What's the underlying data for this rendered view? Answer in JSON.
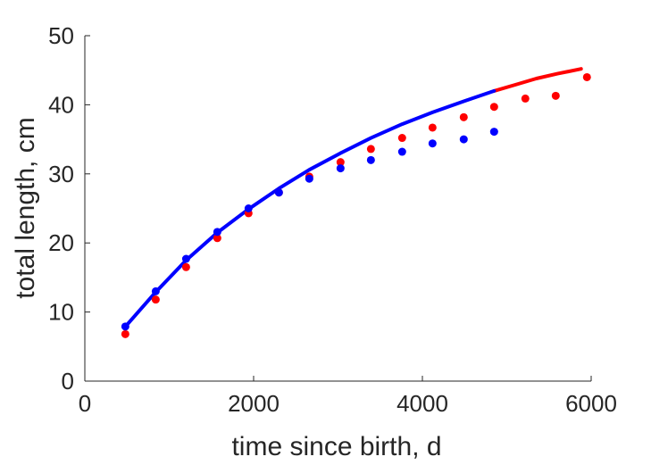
{
  "chart_data": {
    "type": "scatter",
    "xlabel": "time since birth, d",
    "ylabel": "total length, cm",
    "xlim": [
      0,
      6000
    ],
    "ylim": [
      0,
      50
    ],
    "xticks": [
      0,
      2000,
      4000,
      6000
    ],
    "yticks": [
      0,
      10,
      20,
      30,
      40,
      50
    ],
    "grid": false,
    "legend": "none",
    "series": [
      {
        "kind": "points",
        "color": "#ff0000",
        "x": [
          480,
          840,
          1200,
          1570,
          1940,
          2300,
          2660,
          3030,
          3390,
          3760,
          4120,
          4490,
          4850,
          5220,
          5580,
          5950
        ],
        "y": [
          6.8,
          11.8,
          16.5,
          20.7,
          24.3,
          27.3,
          29.6,
          31.7,
          33.6,
          35.2,
          36.7,
          38.2,
          39.7,
          40.9,
          41.3,
          44.0
        ]
      },
      {
        "kind": "points",
        "color": "#0000ff",
        "x": [
          480,
          840,
          1200,
          1570,
          1940,
          2300,
          2660,
          3030,
          3390,
          3760,
          4120,
          4490,
          4850
        ],
        "y": [
          7.9,
          13.0,
          17.7,
          21.6,
          25.0,
          27.3,
          29.3,
          30.8,
          32.0,
          33.2,
          34.4,
          35.0,
          36.1
        ]
      },
      {
        "kind": "line",
        "color": "#ff0000",
        "x": [
          4850,
          5100,
          5350,
          5600,
          5880
        ],
        "y": [
          42.0,
          42.9,
          43.8,
          44.5,
          45.2
        ]
      },
      {
        "kind": "line",
        "color": "#0000ff",
        "x": [
          480,
          840,
          1200,
          1570,
          1940,
          2300,
          2660,
          3030,
          3390,
          3760,
          4120,
          4490,
          4850
        ],
        "y": [
          7.9,
          12.9,
          17.5,
          21.5,
          24.9,
          27.9,
          30.6,
          33.0,
          35.2,
          37.2,
          38.9,
          40.5,
          42.0
        ]
      }
    ]
  }
}
